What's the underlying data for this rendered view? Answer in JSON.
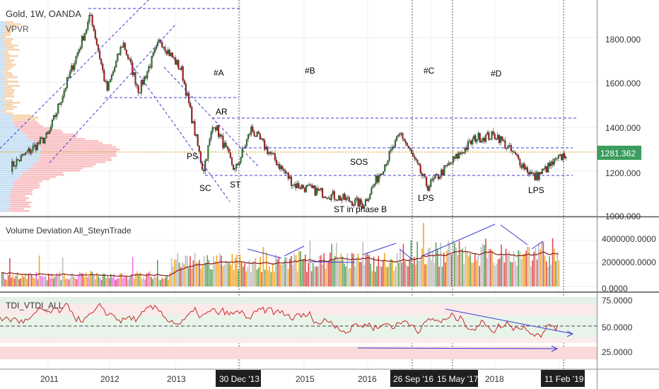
{
  "header": {
    "symbol_title": "Gold, 1W, OANDA",
    "indicator_vpvr": "VPVR",
    "volume_pane_title": "Volume Deviation All_SteynTrade",
    "tdi_pane_title": "TDI_VTDI_ALL"
  },
  "price_axis": {
    "ticks": [
      "1800.000",
      "1600.000",
      "1400.000",
      "1200.000",
      "1000.000"
    ],
    "current_price": "1281.362",
    "current_price_color": "#3a9d5d"
  },
  "volume_axis": {
    "ticks": [
      "4000000.0000",
      "2000000.0000",
      "0.0000"
    ]
  },
  "tdi_axis": {
    "ticks": [
      "75.0000",
      "50.0000",
      "25.0000"
    ]
  },
  "time_axis": {
    "ticks": [
      "2011",
      "2012",
      "2013",
      "2015",
      "2016",
      "2018"
    ],
    "highlighted_dates": [
      "30 Dec '13",
      "26 Sep '16",
      "15 May '17",
      "11 Feb '19"
    ]
  },
  "annotations": {
    "phases": [
      "#A",
      "#B",
      "#C",
      "#D"
    ],
    "events": [
      "AR",
      "PS",
      "SC",
      "ST",
      "SOS",
      "ST in phase B",
      "LPS",
      "LPS"
    ]
  },
  "chart_data": {
    "type": "candlestick",
    "title": "Gold, 1W, OANDA",
    "x_range": [
      "2010",
      "2019-02"
    ],
    "y_range": [
      980,
      1960
    ],
    "approx_price_path": [
      {
        "x": "2010-06",
        "y": 1220
      },
      {
        "x": "2011-01",
        "y": 1360
      },
      {
        "x": "2011-09",
        "y": 1900
      },
      {
        "x": "2011-12",
        "y": 1560
      },
      {
        "x": "2012-03",
        "y": 1780
      },
      {
        "x": "2012-06",
        "y": 1560
      },
      {
        "x": "2012-10",
        "y": 1790
      },
      {
        "x": "2013-02",
        "y": 1650
      },
      {
        "x": "2013-06",
        "y": 1200
      },
      {
        "x": "2013-08",
        "y": 1420
      },
      {
        "x": "2013-12",
        "y": 1200
      },
      {
        "x": "2014-03",
        "y": 1390
      },
      {
        "x": "2014-11",
        "y": 1140
      },
      {
        "x": "2015-12",
        "y": 1050
      },
      {
        "x": "2016-07",
        "y": 1370
      },
      {
        "x": "2016-12",
        "y": 1130
      },
      {
        "x": "2017-09",
        "y": 1350
      },
      {
        "x": "2018-01",
        "y": 1360
      },
      {
        "x": "2018-08",
        "y": 1170
      },
      {
        "x": "2019-02",
        "y": 1281
      }
    ],
    "volume_series": {
      "name": "Volume Deviation All_SteynTrade",
      "range": [
        0,
        4500000
      ]
    },
    "tdi_series": {
      "name": "TDI_VTDI_ALL",
      "range": [
        15,
        80
      ],
      "levels": [
        75,
        50,
        25
      ]
    }
  }
}
